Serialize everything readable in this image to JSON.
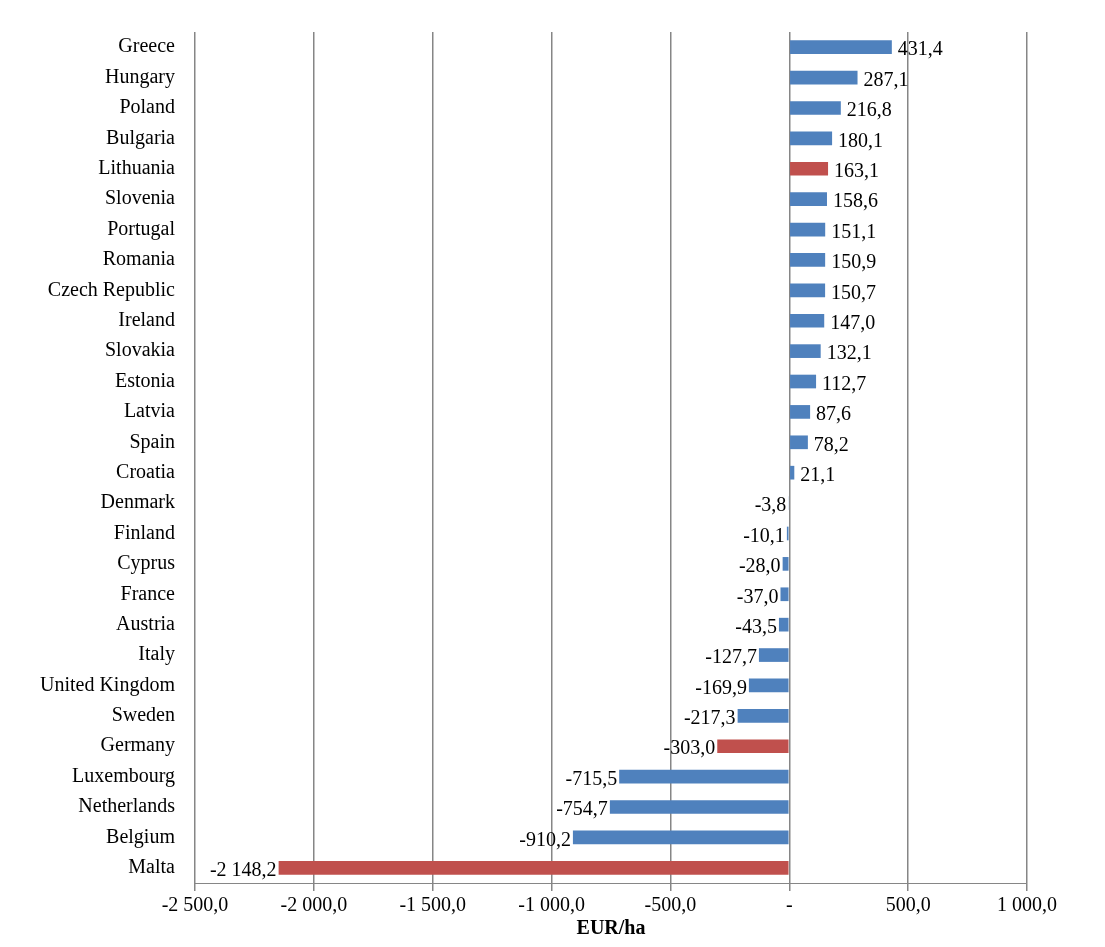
{
  "chart_data": {
    "type": "bar",
    "orientation": "horizontal",
    "xlabel": "EUR/ha",
    "categories": [
      "Greece",
      "Hungary",
      "Poland",
      "Bulgaria",
      "Lithuania",
      "Slovenia",
      "Portugal",
      "Romania",
      "Czech Republic",
      "Ireland",
      "Slovakia",
      "Estonia",
      "Latvia",
      "Spain",
      "Croatia",
      "Denmark",
      "Finland",
      "Cyprus",
      "France",
      "Austria",
      "Italy",
      "United Kingdom",
      "Sweden",
      "Germany",
      "Luxembourg",
      "Netherlands",
      "Belgium",
      "Malta"
    ],
    "values": [
      431.4,
      287.1,
      216.8,
      180.1,
      163.1,
      158.6,
      151.1,
      150.9,
      150.7,
      147.0,
      132.1,
      112.7,
      87.6,
      78.2,
      21.1,
      -3.8,
      -10.1,
      -28.0,
      -37.0,
      -43.5,
      -127.7,
      -169.9,
      -217.3,
      -303.0,
      -715.5,
      -754.7,
      -910.2,
      -2148.2
    ],
    "value_labels": [
      "431,4",
      "287,1",
      "216,8",
      "180,1",
      "163,1",
      "158,6",
      "151,1",
      "150,9",
      "150,7",
      "147,0",
      "132,1",
      "112,7",
      "87,6",
      "78,2",
      "21,1",
      "-3,8",
      "-10,1",
      "-28,0",
      "-37,0",
      "-43,5",
      "-127,7",
      "-169,9",
      "-217,3",
      "-303,0",
      "-715,5",
      "-754,7",
      "-910,2",
      "-2 148,2"
    ],
    "colors": [
      "#4f81bd",
      "#4f81bd",
      "#4f81bd",
      "#4f81bd",
      "#c0504d",
      "#4f81bd",
      "#4f81bd",
      "#4f81bd",
      "#4f81bd",
      "#4f81bd",
      "#4f81bd",
      "#4f81bd",
      "#4f81bd",
      "#4f81bd",
      "#4f81bd",
      "#4f81bd",
      "#4f81bd",
      "#4f81bd",
      "#4f81bd",
      "#4f81bd",
      "#4f81bd",
      "#4f81bd",
      "#4f81bd",
      "#c0504d",
      "#4f81bd",
      "#4f81bd",
      "#4f81bd",
      "#c0504d"
    ],
    "xlim": [
      -2500,
      1000
    ],
    "xticks": [
      {
        "value": -2500,
        "label": "-2 500,0"
      },
      {
        "value": -2000,
        "label": "-2 000,0"
      },
      {
        "value": -1500,
        "label": "-1 500,0"
      },
      {
        "value": -1000,
        "label": "-1 000,0"
      },
      {
        "value": -500,
        "label": "-500,0"
      },
      {
        "value": 0,
        "label": "-"
      },
      {
        "value": 500,
        "label": "500,0"
      },
      {
        "value": 1000,
        "label": "1 000,0"
      }
    ],
    "grid": "x",
    "legend": false
  }
}
